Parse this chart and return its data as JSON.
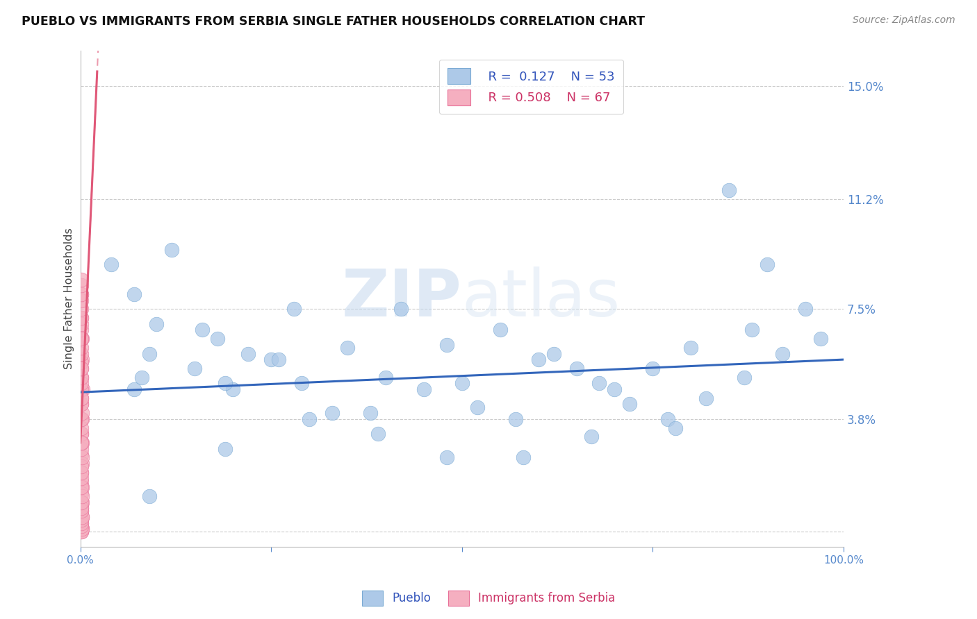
{
  "title": "PUEBLO VS IMMIGRANTS FROM SERBIA SINGLE FATHER HOUSEHOLDS CORRELATION CHART",
  "source": "Source: ZipAtlas.com",
  "ylabel": "Single Father Households",
  "ytick_vals": [
    0.0,
    0.038,
    0.075,
    0.112,
    0.15
  ],
  "ytick_labels": [
    "",
    "3.8%",
    "7.5%",
    "11.2%",
    "15.0%"
  ],
  "xlim": [
    0.0,
    1.0
  ],
  "ylim": [
    -0.005,
    0.162
  ],
  "legend_blue_r": "0.127",
  "legend_blue_n": "53",
  "legend_pink_r": "0.508",
  "legend_pink_n": "67",
  "blue_scatter_color": "#adc9e8",
  "pink_scatter_color": "#f5afc0",
  "blue_edge_color": "#7aaad4",
  "pink_edge_color": "#e87098",
  "trend_blue_color": "#3366bb",
  "trend_pink_color": "#e05878",
  "watermark_color": "#dde8f5",
  "grid_color": "#cccccc",
  "tick_color": "#5588cc",
  "title_color": "#111111",
  "source_color": "#888888",
  "ylabel_color": "#444444",
  "legend_box_color": "#cccccc",
  "blue_trend_start_x": 0.0,
  "blue_trend_start_y": 0.047,
  "blue_trend_end_x": 1.0,
  "blue_trend_end_y": 0.058,
  "pink_trend_start_x": 0.0,
  "pink_trend_start_y": 0.03,
  "pink_trend_end_x": 0.12,
  "pink_trend_end_y": 0.155,
  "pueblo_x": [
    0.04,
    0.07,
    0.09,
    0.12,
    0.15,
    0.07,
    0.1,
    0.08,
    0.18,
    0.16,
    0.2,
    0.22,
    0.19,
    0.25,
    0.28,
    0.3,
    0.26,
    0.35,
    0.33,
    0.4,
    0.38,
    0.45,
    0.42,
    0.5,
    0.48,
    0.55,
    0.52,
    0.6,
    0.57,
    0.65,
    0.62,
    0.7,
    0.67,
    0.75,
    0.72,
    0.8,
    0.77,
    0.85,
    0.82,
    0.9,
    0.87,
    0.95,
    0.92,
    0.97,
    0.88,
    0.78,
    0.68,
    0.58,
    0.48,
    0.39,
    0.29,
    0.19,
    0.09
  ],
  "pueblo_y": [
    0.09,
    0.08,
    0.06,
    0.095,
    0.055,
    0.048,
    0.07,
    0.052,
    0.065,
    0.068,
    0.048,
    0.06,
    0.05,
    0.058,
    0.075,
    0.038,
    0.058,
    0.062,
    0.04,
    0.052,
    0.04,
    0.048,
    0.075,
    0.05,
    0.063,
    0.068,
    0.042,
    0.058,
    0.038,
    0.055,
    0.06,
    0.048,
    0.032,
    0.055,
    0.043,
    0.062,
    0.038,
    0.115,
    0.045,
    0.09,
    0.052,
    0.075,
    0.06,
    0.065,
    0.068,
    0.035,
    0.05,
    0.025,
    0.025,
    0.033,
    0.05,
    0.028,
    0.012
  ],
  "serbia_x": [
    0.001,
    0.001,
    0.002,
    0.002,
    0.001,
    0.003,
    0.001,
    0.002,
    0.001,
    0.002,
    0.001,
    0.002,
    0.001,
    0.001,
    0.002,
    0.001,
    0.002,
    0.001,
    0.001,
    0.002,
    0.001,
    0.001,
    0.002,
    0.001,
    0.001,
    0.002,
    0.001,
    0.001,
    0.001,
    0.002,
    0.001,
    0.001,
    0.001,
    0.002,
    0.001,
    0.001,
    0.001,
    0.001,
    0.002,
    0.001,
    0.001,
    0.001,
    0.001,
    0.001,
    0.002,
    0.001,
    0.001,
    0.001,
    0.001,
    0.001,
    0.001,
    0.001,
    0.001,
    0.001,
    0.001,
    0.001,
    0.001,
    0.001,
    0.001,
    0.001,
    0.001,
    0.001,
    0.001,
    0.001,
    0.001,
    0.001,
    0.001
  ],
  "serbia_y": [
    0.08,
    0.072,
    0.065,
    0.058,
    0.052,
    0.048,
    0.043,
    0.038,
    0.033,
    0.03,
    0.026,
    0.023,
    0.02,
    0.017,
    0.015,
    0.013,
    0.01,
    0.008,
    0.007,
    0.005,
    0.003,
    0.002,
    0.001,
    0.0,
    0.0,
    0.001,
    0.002,
    0.003,
    0.004,
    0.005,
    0.007,
    0.008,
    0.01,
    0.012,
    0.015,
    0.018,
    0.02,
    0.022,
    0.025,
    0.028,
    0.03,
    0.033,
    0.035,
    0.038,
    0.04,
    0.043,
    0.045,
    0.048,
    0.05,
    0.052,
    0.055,
    0.057,
    0.06,
    0.062,
    0.065,
    0.068,
    0.07,
    0.072,
    0.075,
    0.078,
    0.08,
    0.083,
    0.085,
    0.045,
    0.055,
    0.065,
    0.03
  ]
}
